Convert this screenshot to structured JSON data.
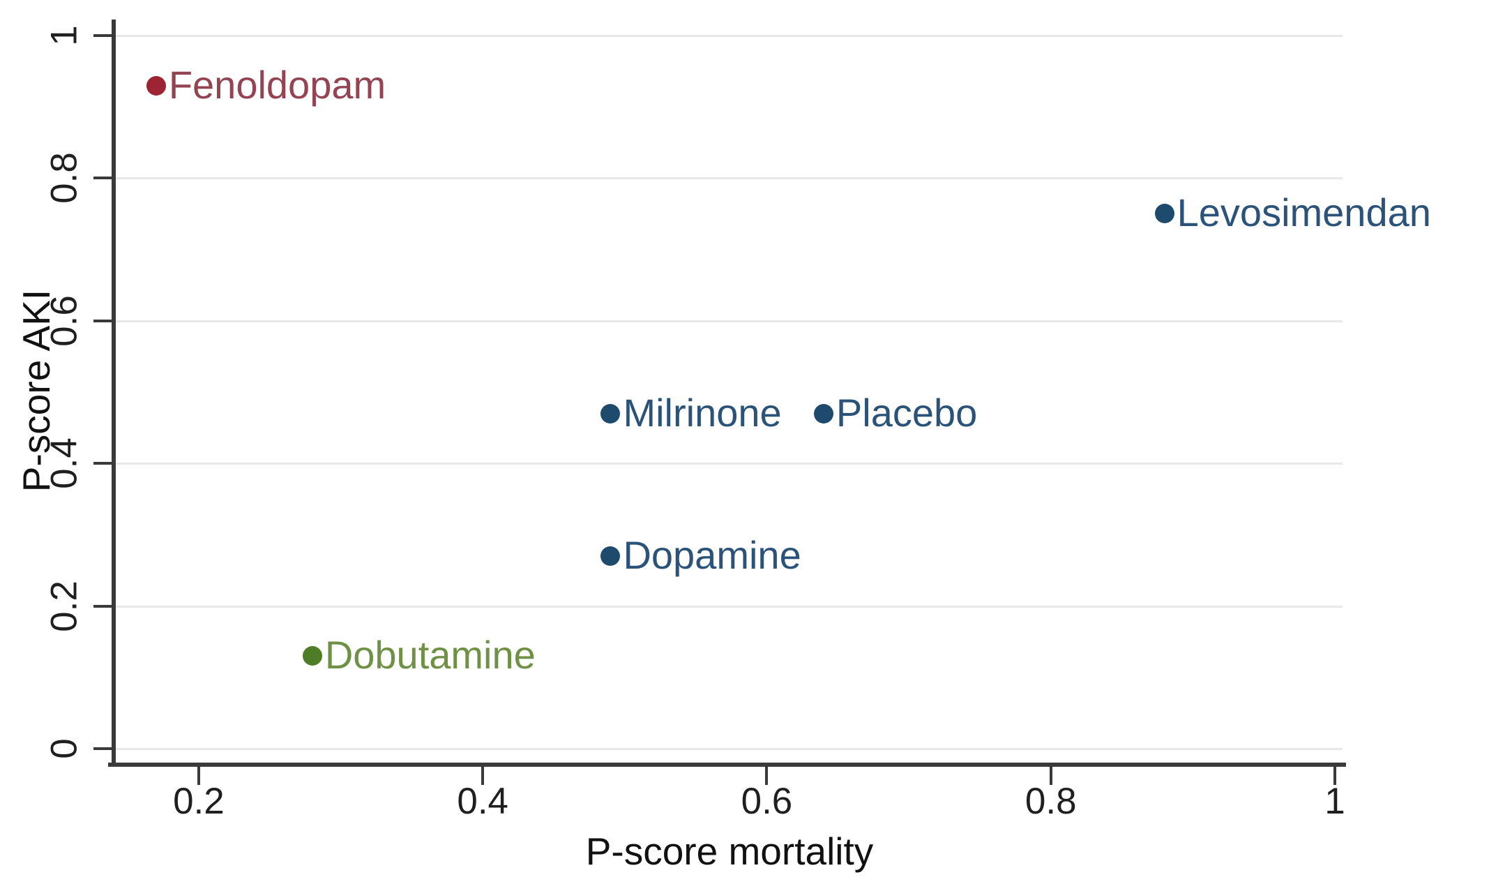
{
  "chart_data": {
    "type": "scatter",
    "title": "",
    "xlabel": "P-score mortality",
    "ylabel": "P-score AKI",
    "xlim": [
      0.1416,
      1.0054
    ],
    "ylim": [
      -0.0196,
      1.0225
    ],
    "x_ticks": [
      0.2,
      0.4,
      0.6,
      0.8,
      1
    ],
    "x_tick_labels": [
      "0.2",
      "0.4",
      "0.6",
      "0.8",
      "1"
    ],
    "y_ticks": [
      0,
      0.2,
      0.4,
      0.6,
      0.8,
      1
    ],
    "y_tick_labels": [
      "0",
      "0.2",
      "0.4",
      "0.6",
      "0.8",
      "1"
    ],
    "grid": "horizontal",
    "legend": "none",
    "colors": {
      "axis": "#3a3a3a",
      "gridline": "#e8e8e8",
      "tick_label": "#1f1f1f",
      "navy": "#1e4a6d",
      "maroon": "#9c2433",
      "green": "#4e7d28"
    },
    "points": [
      {
        "label": "Fenoldopam",
        "x": 0.17,
        "y": 0.93,
        "dot_color": "#9c2433",
        "label_color": "#934351"
      },
      {
        "label": "Levosimendan",
        "x": 0.88,
        "y": 0.75,
        "dot_color": "#1e4a6d",
        "label_color": "#2b5379"
      },
      {
        "label": "Milrinone",
        "x": 0.49,
        "y": 0.47,
        "dot_color": "#1e4a6d",
        "label_color": "#2b5379"
      },
      {
        "label": "Placebo",
        "x": 0.64,
        "y": 0.47,
        "dot_color": "#1e4a6d",
        "label_color": "#2b5379"
      },
      {
        "label": "Dopamine",
        "x": 0.49,
        "y": 0.27,
        "dot_color": "#1e4a6d",
        "label_color": "#2b5379"
      },
      {
        "label": "Dobutamine",
        "x": 0.28,
        "y": 0.13,
        "dot_color": "#4e7d28",
        "label_color": "#6f9146"
      }
    ]
  }
}
